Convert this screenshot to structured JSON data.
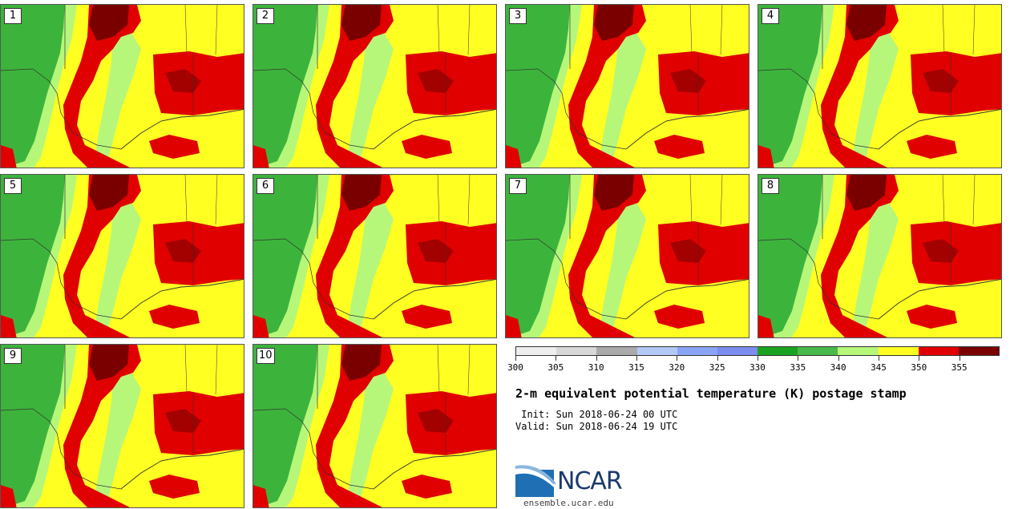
{
  "panels": [
    {
      "label": "1"
    },
    {
      "label": "2"
    },
    {
      "label": "3"
    },
    {
      "label": "4"
    },
    {
      "label": "5"
    },
    {
      "label": "6"
    },
    {
      "label": "7"
    },
    {
      "label": "8"
    },
    {
      "label": "9"
    },
    {
      "label": "10"
    }
  ],
  "colorbar": {
    "colors": [
      "#eeeeee",
      "#d8d8d8",
      "#aaaaaa",
      "#b3c8f7",
      "#8aa4f5",
      "#7d8cf0",
      "#1aa320",
      "#48b94a",
      "#b6f77a",
      "#ffff22",
      "#e00000",
      "#7a0000"
    ],
    "tick_values": [
      "300",
      "305",
      "310",
      "315",
      "320",
      "325",
      "330",
      "335",
      "340",
      "345",
      "350",
      "355"
    ]
  },
  "title": "2-m equivalent potential temperature (K) postage stamp",
  "init": " Init: Sun 2018-06-24 00 UTC",
  "valid": "Valid: Sun 2018-06-24 19 UTC",
  "logo": {
    "text": "NCAR"
  },
  "site": "ensemble.ucar.edu",
  "map_colors": {
    "green": "#3cb43c",
    "lightgreen": "#b6f77a",
    "yellow": "#ffff22",
    "red": "#e00000",
    "darkred": "#7a0000",
    "border": "#333333"
  }
}
